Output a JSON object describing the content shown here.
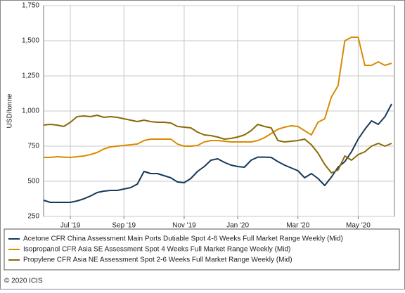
{
  "chart_data": {
    "type": "line",
    "y_label": "USD/tonne",
    "footer": "© 2020 ICIS",
    "categories": [
      null,
      null,
      null,
      null,
      "Jul '19",
      null,
      null,
      null,
      null,
      null,
      null,
      null,
      "Sep '19",
      null,
      null,
      null,
      null,
      null,
      null,
      null,
      null,
      "Nov '19",
      null,
      null,
      null,
      null,
      null,
      null,
      null,
      "Jan '20",
      null,
      null,
      null,
      null,
      null,
      null,
      null,
      null,
      "Mar '20",
      null,
      null,
      null,
      null,
      null,
      null,
      null,
      null,
      "May '20",
      null,
      null,
      null,
      null,
      null
    ],
    "series": [
      {
        "name": "Acetone CFR China Assessment Main Ports Dutiable Spot 4-6 Weeks Full Market Range Weekly (Mid)",
        "color": "#16385a",
        "values": [
          365,
          350,
          350,
          350,
          350,
          360,
          375,
          395,
          420,
          430,
          435,
          435,
          445,
          455,
          480,
          570,
          555,
          555,
          540,
          525,
          495,
          490,
          520,
          570,
          605,
          650,
          660,
          635,
          615,
          605,
          600,
          650,
          672,
          672,
          670,
          640,
          615,
          595,
          575,
          525,
          555,
          520,
          470,
          530,
          600,
          640,
          710,
          800,
          870,
          930,
          905,
          960,
          1050
        ]
      },
      {
        "name": "Isopropanol CFR Asia SE Assessment Spot 4 Weeks Full Market Range Weekly (Mid)",
        "color": "#d98a00",
        "values": [
          670,
          670,
          675,
          672,
          670,
          675,
          680,
          690,
          705,
          730,
          745,
          750,
          755,
          760,
          765,
          790,
          800,
          800,
          800,
          800,
          765,
          750,
          750,
          755,
          780,
          790,
          790,
          785,
          780,
          780,
          780,
          780,
          790,
          810,
          840,
          870,
          885,
          895,
          890,
          860,
          830,
          920,
          945,
          1100,
          1180,
          1500,
          1525,
          1525,
          1325,
          1325,
          1350,
          1325,
          1340
        ]
      },
      {
        "name": "Propylene CFR Asia NE Assessment Spot 2-6 Weeks Full Market Range Weekly (Mid)",
        "color": "#8a6a08",
        "values": [
          900,
          905,
          900,
          890,
          920,
          960,
          965,
          960,
          970,
          955,
          960,
          955,
          945,
          935,
          925,
          935,
          925,
          920,
          920,
          915,
          890,
          885,
          880,
          850,
          830,
          825,
          815,
          800,
          805,
          815,
          830,
          860,
          905,
          890,
          880,
          790,
          780,
          785,
          790,
          800,
          760,
          700,
          620,
          560,
          580,
          680,
          650,
          690,
          710,
          750,
          770,
          750,
          770
        ]
      }
    ],
    "ylim": [
      250,
      1750
    ],
    "yticks": [
      250,
      500,
      750,
      {
        "value": 1000,
        "label": "1,000"
      },
      {
        "value": 1250,
        "label": "1,250"
      },
      {
        "value": 1500,
        "label": "1,500"
      },
      {
        "value": 1750,
        "label": "1,750"
      }
    ],
    "grid": true
  }
}
